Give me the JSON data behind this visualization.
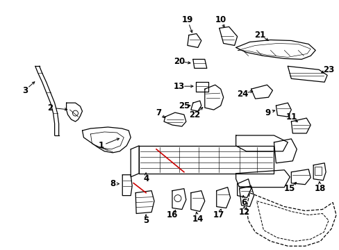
{
  "background_color": "#ffffff",
  "line_color": "#000000",
  "red_color": "#cc0000",
  "fig_width": 4.89,
  "fig_height": 3.6,
  "dpi": 100,
  "label_fontsize": 8.5
}
